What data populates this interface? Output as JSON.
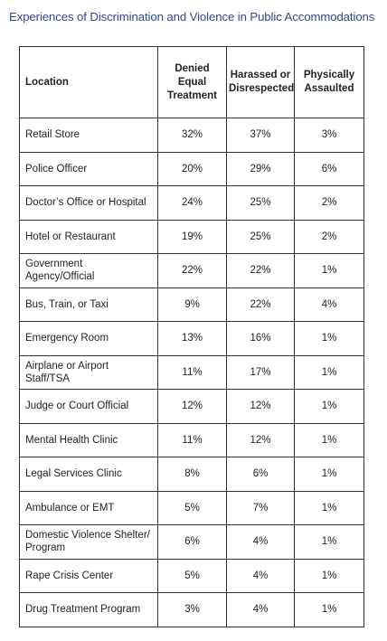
{
  "title": "Experiences of Discrimination and Violence in Public Accommodations",
  "columns": {
    "location": "Location",
    "denied": "Denied Equal Treatment",
    "harassed": "Harassed or Disrespected",
    "assaulted": "Physically Assaulted"
  },
  "rows": [
    {
      "location": "Retail Store",
      "denied": "32%",
      "harassed": "37%",
      "assaulted": "3%"
    },
    {
      "location": "Police Officer",
      "denied": "20%",
      "harassed": "29%",
      "assaulted": "6%"
    },
    {
      "location": "Doctor’s Office or Hospital",
      "denied": "24%",
      "harassed": "25%",
      "assaulted": "2%"
    },
    {
      "location": "Hotel or Restaurant",
      "denied": "19%",
      "harassed": "25%",
      "assaulted": "2%"
    },
    {
      "location": "Government Agency/Official",
      "denied": "22%",
      "harassed": "22%",
      "assaulted": "1%"
    },
    {
      "location": "Bus, Train, or Taxi",
      "denied": "9%",
      "harassed": "22%",
      "assaulted": "4%"
    },
    {
      "location": "Emergency Room",
      "denied": "13%",
      "harassed": "16%",
      "assaulted": "1%"
    },
    {
      "location": "Airplane or Airport Staff/TSA",
      "denied": "11%",
      "harassed": "17%",
      "assaulted": "1%"
    },
    {
      "location": "Judge or Court Official",
      "denied": "12%",
      "harassed": "12%",
      "assaulted": "1%"
    },
    {
      "location": "Mental Health Clinic",
      "denied": "11%",
      "harassed": "12%",
      "assaulted": "1%"
    },
    {
      "location": "Legal Services Clinic",
      "denied": "8%",
      "harassed": "6%",
      "assaulted": "1%"
    },
    {
      "location": "Ambulance or EMT",
      "denied": "5%",
      "harassed": "7%",
      "assaulted": "1%"
    },
    {
      "location": "Domestic Violence Shelter/ Program",
      "denied": "6%",
      "harassed": "4%",
      "assaulted": "1%"
    },
    {
      "location": "Rape Crisis Center",
      "denied": "5%",
      "harassed": "4%",
      "assaulted": "1%"
    },
    {
      "location": "Drug Treatment Program",
      "denied": "3%",
      "harassed": "4%",
      "assaulted": "1%"
    }
  ],
  "colors": {
    "title": "#2b4a8c",
    "text": "#222222",
    "border": "#333333"
  }
}
